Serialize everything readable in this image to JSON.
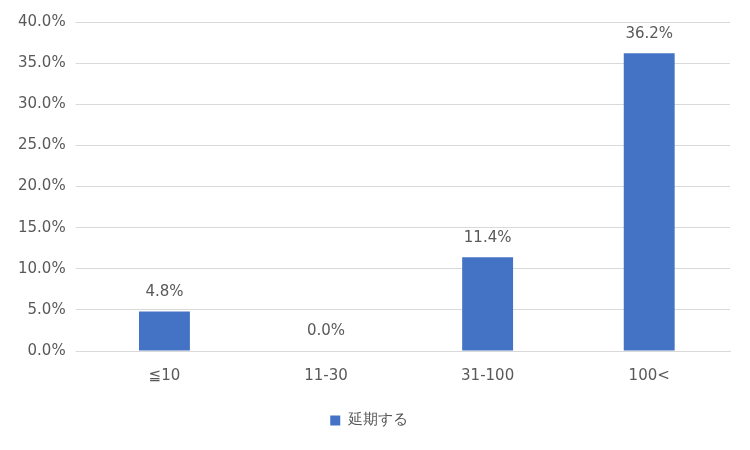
{
  "chart_data": {
    "type": "bar",
    "categories": [
      "≦10",
      "11-30",
      "31-100",
      "100<"
    ],
    "series": [
      {
        "name": "延期する",
        "color": "#4472c4",
        "values": [
          4.8,
          0.0,
          11.4,
          36.2
        ],
        "value_labels": [
          "4.8%",
          "0.0%",
          "11.4%",
          "36.2%"
        ]
      }
    ],
    "ylim": [
      0,
      40
    ],
    "yticks": [
      {
        "value": 0,
        "label": "0.0%"
      },
      {
        "value": 5,
        "label": "5.0%"
      },
      {
        "value": 10,
        "label": "10.0%"
      },
      {
        "value": 15,
        "label": "15.0%"
      },
      {
        "value": 20,
        "label": "20.0%"
      },
      {
        "value": 25,
        "label": "25.0%"
      },
      {
        "value": 30,
        "label": "30.0%"
      },
      {
        "value": 35,
        "label": "35.0%"
      },
      {
        "value": 40,
        "label": "40.0%"
      }
    ],
    "grid": true,
    "legend": "bottom",
    "data_labels": true
  }
}
